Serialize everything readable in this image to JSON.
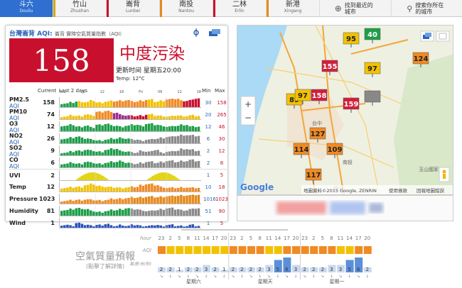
{
  "nav": {
    "tabs": [
      {
        "label": "斗六",
        "sub": "Douliu",
        "active": true,
        "bar": ""
      },
      {
        "label": "竹山",
        "sub": "Zhushan",
        "active": false,
        "bar": "#d9a400"
      },
      {
        "label": "崙背",
        "sub": "Lunbei",
        "active": false,
        "bar": "#c8102e"
      },
      {
        "label": "南投",
        "sub": "Nantou",
        "active": false,
        "bar": "#e48a1c"
      },
      {
        "label": "二林",
        "sub": "Erlin",
        "active": false,
        "bar": "#c8102e"
      },
      {
        "label": "新港",
        "sub": "Xingang",
        "active": false,
        "bar": "#e48a1c"
      }
    ],
    "nearest_label": "找到最近的城市",
    "search_label": "搜索你所在的城市"
  },
  "station": {
    "title": "台灣崙背 AQI:",
    "title_zh": "崙背 實時空氣質量指數（AQI）",
    "aqi": "158",
    "level": "中度污染",
    "updated": "更新时间 星期五20:00",
    "temp": "Temp: 12°C",
    "aqi_color": "#c8102e"
  },
  "table": {
    "col_current": "Current",
    "col_last2": "Last 2 days",
    "col_min": "Min",
    "col_max": "Max",
    "day_labels": [
      "Thu",
      "06",
      "12",
      "18",
      "Fri",
      "06",
      "12",
      "18"
    ],
    "rows": [
      {
        "name": "PM2.5",
        "aqi": "AQI",
        "current": "158",
        "min": "30",
        "max": "158"
      },
      {
        "name": "PM10",
        "aqi": "AQI",
        "current": "74",
        "min": "20",
        "max": "265"
      },
      {
        "name": "O3",
        "aqi": "AQI",
        "current": "12",
        "min": "12",
        "max": "46"
      },
      {
        "name": "NO2",
        "aqi": "AQI",
        "current": "26",
        "min": "6",
        "max": "30"
      },
      {
        "name": "SO2",
        "aqi": "AQI",
        "current": "9",
        "min": "2",
        "max": "12"
      },
      {
        "name": "CO",
        "aqi": "AQI",
        "current": "6",
        "min": "2",
        "max": "8"
      },
      {
        "name": "UVI",
        "aqi": "",
        "current": "2",
        "min": "1",
        "max": "5"
      },
      {
        "name": "Temp",
        "aqi": "",
        "current": "12",
        "min": "10",
        "max": "18"
      },
      {
        "name": "Pressure",
        "aqi": "",
        "current": "1023",
        "min": "1016",
        "max": "1023"
      },
      {
        "name": "Humidity",
        "aqi": "",
        "current": "81",
        "min": "51",
        "max": "90"
      },
      {
        "name": "Wind",
        "aqi": "",
        "current": "1",
        "min": "1",
        "max": "5"
      }
    ]
  },
  "map": {
    "markers": [
      {
        "v": "95",
        "c": "#f2c200",
        "tc": "#222"
      },
      {
        "v": "40",
        "c": "#1e9e4a",
        "tc": "#fff"
      },
      {
        "v": "124",
        "c": "#f08a24",
        "tc": "#222"
      },
      {
        "v": "155",
        "c": "#d21f3c",
        "tc": "#fff"
      },
      {
        "v": "97",
        "c": "#f2c200",
        "tc": "#222"
      },
      {
        "v": "89",
        "c": "#f2c200",
        "tc": "#222"
      },
      {
        "v": "97",
        "c": "#f2c200",
        "tc": "#222"
      },
      {
        "v": "158",
        "c": "#d21f3c",
        "tc": "#fff"
      },
      {
        "v": "159",
        "c": "#d21f3c",
        "tc": "#fff"
      },
      {
        "v": "",
        "c": "#888",
        "tc": "#fff"
      },
      {
        "v": "127",
        "c": "#f08a24",
        "tc": "#222"
      },
      {
        "v": "114",
        "c": "#f08a24",
        "tc": "#222"
      },
      {
        "v": "109",
        "c": "#f08a24",
        "tc": "#222"
      },
      {
        "v": "117",
        "c": "#f08a24",
        "tc": "#222"
      }
    ],
    "places": [
      "台中",
      "南投",
      "竹山",
      "玉山國家"
    ],
    "zoom_in": "+",
    "zoom_out": "−",
    "google": "Google",
    "attribution": "地圖資料©2015 Google, ZENRIN",
    "terms": "使用條款",
    "report": "回報地圖錯誤"
  },
  "forecast": {
    "title": "空氣質量預報",
    "subtitle": "(點擊了解詳情)",
    "hour_label": "hour",
    "aqi_label": "AQI",
    "wind_label": "風速(米/秒)",
    "hours": [
      "23",
      "2",
      "5",
      "8",
      "11",
      "14",
      "17",
      "20",
      "23",
      "2",
      "5",
      "8",
      "11",
      "14",
      "17",
      "20",
      "23",
      "2",
      "5",
      "8",
      "11",
      "14",
      "17",
      "20"
    ],
    "aqi_colors": [
      "#f08a24",
      "#f2c200",
      "#f2c200",
      "#f2c200",
      "#f2c200",
      "#f2c200",
      "#f2c200",
      "#f2c200",
      "#f08a24",
      "#f08a24",
      "#f08a24",
      "#f08a24",
      "#f2c200",
      "#f2c200",
      "#f08a24",
      "#f08a24",
      "#f08a24",
      "#f08a24",
      "#f08a24",
      "#f08a24",
      "#f2c200",
      "#f2c200",
      "#f08a24",
      "#f08a24"
    ],
    "winds": [
      "2",
      "2",
      "1",
      "2",
      "2",
      "3",
      "2",
      "1",
      "2",
      "2",
      "2",
      "2",
      "3",
      "5",
      "6",
      "3",
      "2",
      "2",
      "2",
      "3",
      "3",
      "5",
      "6",
      "2"
    ],
    "days": [
      "星期六",
      "星期天",
      "星期一"
    ]
  }
}
